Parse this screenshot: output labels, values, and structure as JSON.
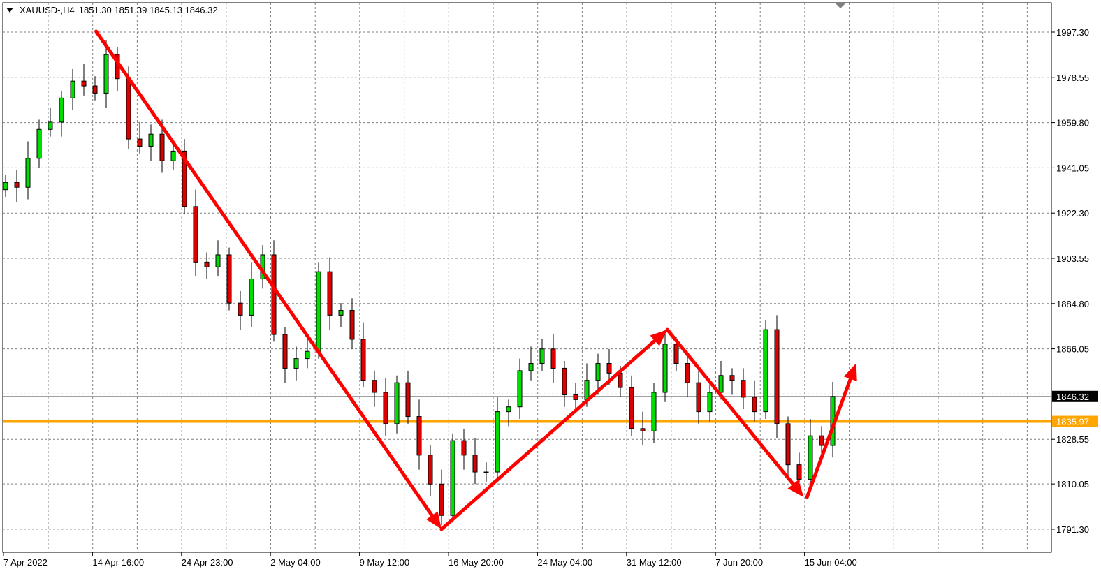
{
  "header": {
    "symbol": "XAUUSD-,H4",
    "ohlc": "1851.30 1851.39 1845.13 1846.32"
  },
  "chart_data": {
    "type": "candlestick",
    "title": "XAUUSD-,H4",
    "ylim": [
      1781,
      2009
    ],
    "grid": true,
    "y_ticks": [
      "1997.30",
      "1978.55",
      "1959.80",
      "1941.05",
      "1922.30",
      "1903.55",
      "1884.80",
      "1866.05",
      "1828.55",
      "1810.05",
      "1791.30"
    ],
    "y_tick_values": [
      1997.3,
      1978.55,
      1959.8,
      1941.05,
      1922.3,
      1903.55,
      1884.8,
      1866.05,
      1828.55,
      1810.05,
      1791.3
    ],
    "x_ticks": [
      "7 Apr 2022",
      "14 Apr 16:00",
      "24 Apr 23:00",
      "2 May 04:00",
      "9 May 12:00",
      "16 May 20:00",
      "24 May 04:00",
      "31 May 12:00",
      "7 Jun 20:00",
      "15 Jun 04:00"
    ],
    "close": [
      1935,
      1933,
      1945,
      1957,
      1960,
      1970,
      1977,
      1975,
      1972,
      1988,
      1978,
      1953,
      1950,
      1955,
      1944,
      1948,
      1925,
      1902,
      1900,
      1905,
      1885,
      1880,
      1895,
      1905,
      1872,
      1858,
      1862,
      1865,
      1898,
      1880,
      1882,
      1870,
      1853,
      1848,
      1835,
      1852,
      1838,
      1822,
      1810,
      1797,
      1828,
      1822,
      1815,
      1815,
      1840,
      1842,
      1857,
      1860,
      1866,
      1858,
      1847,
      1845,
      1853,
      1860,
      1856,
      1850,
      1833,
      1832,
      1848,
      1868,
      1860,
      1852,
      1840,
      1848,
      1855,
      1853,
      1846,
      1840,
      1874,
      1835,
      1818,
      1812,
      1830,
      1826,
      1846.32
    ],
    "current_price": {
      "label": "1846.32",
      "value": 1846.32,
      "color": "#000000"
    },
    "horizontal_line": {
      "label": "1835.97",
      "value": 1835.97,
      "color": "#ffa500"
    },
    "arrows": [
      {
        "from": [
          8.1,
          1997.6
        ],
        "to": [
          39.0,
          1791.3
        ]
      },
      {
        "from": [
          39.0,
          1791.3
        ],
        "to": [
          59.2,
          1874.0
        ]
      },
      {
        "from": [
          59.2,
          1874.0
        ],
        "to": [
          71.4,
          1804.6
        ]
      },
      {
        "from": [
          71.7,
          1804.6
        ],
        "to": [
          76.1,
          1860.1
        ]
      }
    ],
    "colors": {
      "bull": "#00dd00",
      "bear": "#dd0000",
      "arrow": "#ff0000",
      "grid": "#808080"
    }
  }
}
